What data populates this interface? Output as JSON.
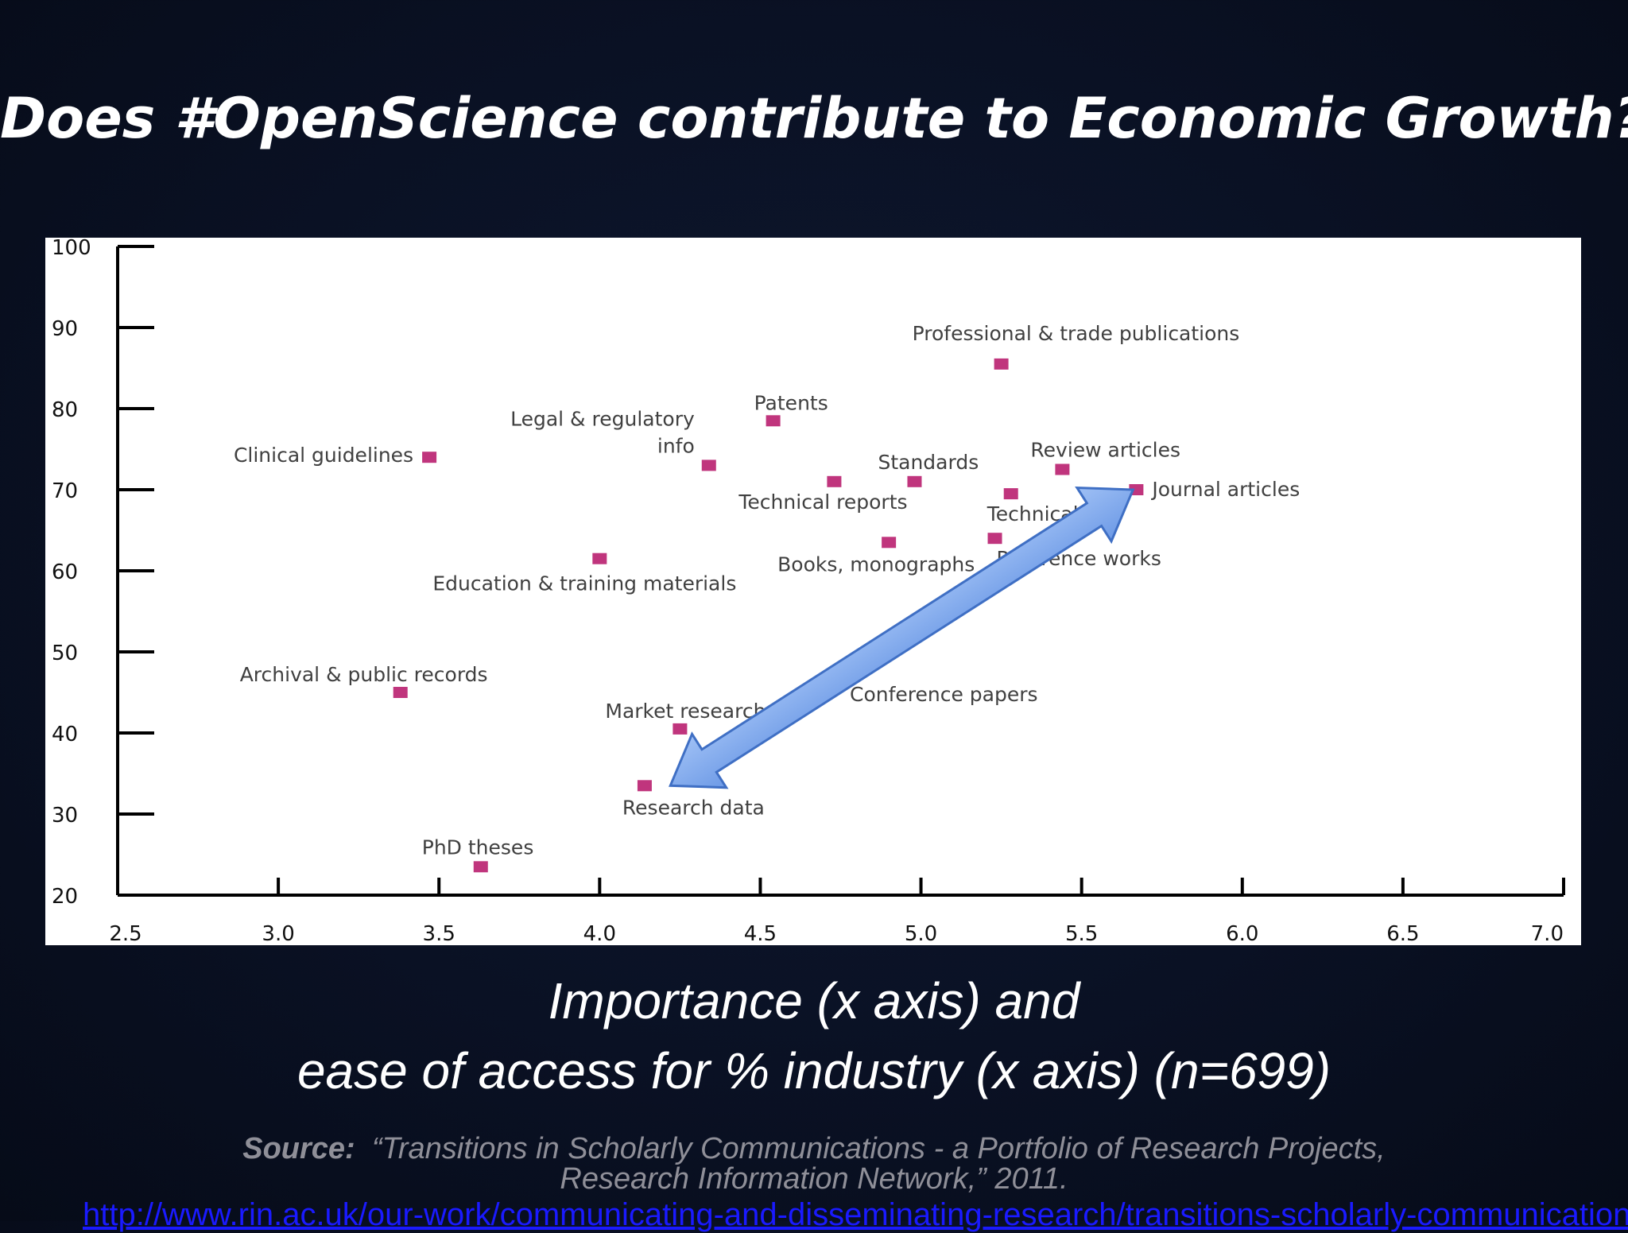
{
  "slide": {
    "title": "Does #OpenScience contribute to Economic Growth?",
    "caption_line1": "Importance (x axis) and",
    "caption_line2": "ease of access for % industry (x axis) (n=699)",
    "source_label": "Source:",
    "source_line1": "“Transitions in Scholarly Communications - a Portfolio of Research Projects,",
    "source_line2": "Research Information Network,” 2011.",
    "source_url": "http://www.rin.ac.uk/our-work/communicating-and-disseminating-research/transitions-scholarly-communications"
  },
  "colors": {
    "background": "#0a1124",
    "marker": "#c0357d",
    "arrow_fill": "#6d9ae6",
    "arrow_stroke": "#3f6fc4",
    "axis": "#000000",
    "label_text": "#404040"
  },
  "chart_data": {
    "type": "scatter",
    "title": "",
    "xlabel": "",
    "ylabel": "",
    "xlim": [
      2.5,
      7.0
    ],
    "ylim": [
      20,
      100
    ],
    "x_ticks": [
      "2.5",
      "3.0",
      "3.5",
      "4.0",
      "4.5",
      "5.0",
      "5.5",
      "6.0",
      "6.5",
      "7.0"
    ],
    "y_ticks": [
      "100",
      "90",
      "80",
      "70",
      "60",
      "50",
      "40",
      "30",
      "20"
    ],
    "grid": false,
    "legend": "none",
    "points": [
      {
        "label": "Professional & trade publications",
        "x": 5.25,
        "y": 85.5
      },
      {
        "label": "Patents",
        "x": 4.54,
        "y": 78.5
      },
      {
        "label": "Clinical guidelines",
        "x": 3.47,
        "y": 74
      },
      {
        "label": "Legal & regulatory info",
        "x": 4.34,
        "y": 73
      },
      {
        "label": "Review articles",
        "x": 5.44,
        "y": 72.5
      },
      {
        "label": "Standards",
        "x": 4.98,
        "y": 71
      },
      {
        "label": "Technical reports",
        "x": 4.73,
        "y": 71
      },
      {
        "label": "Technical",
        "x": 5.28,
        "y": 69.5
      },
      {
        "label": "Journal articles",
        "x": 5.67,
        "y": 70
      },
      {
        "label": "Reference works",
        "x": 5.23,
        "y": 64
      },
      {
        "label": "Books, monographs",
        "x": 4.9,
        "y": 63.5
      },
      {
        "label": "Education & training materials",
        "x": 4.0,
        "y": 61.5
      },
      {
        "label": "Archival & public records",
        "x": 3.38,
        "y": 45
      },
      {
        "label": "Conference papers",
        "x": null,
        "y": null
      },
      {
        "label": "Market research",
        "x": 4.25,
        "y": 40.5
      },
      {
        "label": "Research data",
        "x": 4.14,
        "y": 33.5
      },
      {
        "label": "PhD theses",
        "x": 3.63,
        "y": 23.5
      }
    ],
    "annotations": [
      {
        "type": "double-arrow",
        "from": {
          "x": 4.22,
          "y": 33.5
        },
        "to": {
          "x": 5.66,
          "y": 70
        }
      }
    ]
  }
}
